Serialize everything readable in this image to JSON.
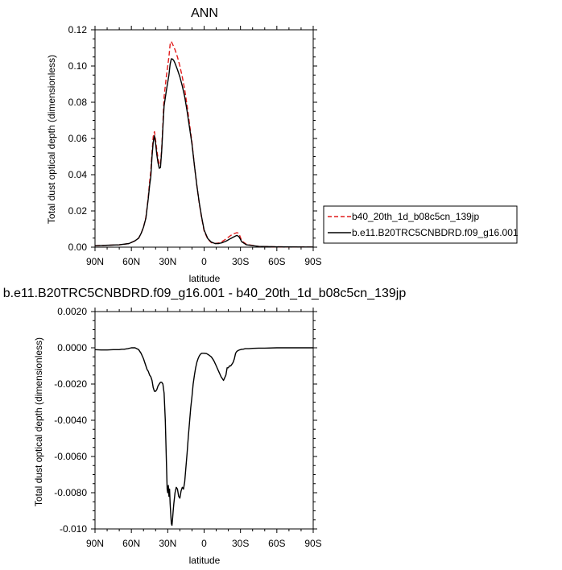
{
  "chart_data": [
    {
      "type": "line",
      "title": "ANN",
      "xlabel": "latitude",
      "ylabel": "Total dust optical depth (dimensionless)",
      "xlim": [
        90,
        -90
      ],
      "ylim": [
        0,
        0.12
      ],
      "x_ticks": [
        "90N",
        "60N",
        "30N",
        "0",
        "30S",
        "60S",
        "90S"
      ],
      "y_ticks": [
        "0.00",
        "0.02",
        "0.04",
        "0.06",
        "0.08",
        "0.10",
        "0.12"
      ],
      "legend_position": "right",
      "series": [
        {
          "name": "b40_20th_1d_b08c5cn_139jp",
          "color": "#e11b1b",
          "dash": "dashed",
          "x": [
            90,
            70,
            62,
            57,
            54,
            52,
            50,
            48,
            47,
            46,
            45,
            44,
            43,
            42,
            41,
            40,
            39,
            38,
            37,
            36,
            35,
            34,
            33,
            31,
            29,
            28,
            27,
            26,
            25,
            24,
            22,
            20,
            18,
            16,
            14,
            12,
            10,
            8,
            6,
            4,
            2,
            0,
            -3,
            -6,
            -9,
            -12,
            -15,
            -18,
            -22,
            -25,
            -27,
            -28,
            -29,
            -31,
            -35,
            -45,
            -60,
            -90
          ],
          "y": [
            0.0008,
            0.0013,
            0.002,
            0.0035,
            0.005,
            0.0075,
            0.011,
            0.0165,
            0.022,
            0.028,
            0.036,
            0.042,
            0.052,
            0.061,
            0.0638,
            0.059,
            0.0535,
            0.049,
            0.0455,
            0.046,
            0.054,
            0.068,
            0.083,
            0.095,
            0.105,
            0.112,
            0.1135,
            0.112,
            0.1105,
            0.109,
            0.105,
            0.1,
            0.094,
            0.087,
            0.078,
            0.068,
            0.058,
            0.045,
            0.034,
            0.024,
            0.016,
            0.009,
            0.0045,
            0.0025,
            0.002,
            0.0023,
            0.0032,
            0.0045,
            0.0065,
            0.0075,
            0.008,
            0.0078,
            0.007,
            0.0035,
            0.0015,
            0.0004,
            0.0002,
            0.0001
          ]
        },
        {
          "name": "b.e11.B20TRC5CNBDRD.f09_g16.001",
          "color": "#000000",
          "dash": "solid",
          "x": [
            90,
            70,
            62,
            57,
            54,
            52,
            50,
            48,
            47,
            46,
            45,
            44,
            43,
            42,
            41,
            40,
            39,
            38,
            37,
            36,
            35,
            34,
            33,
            31,
            29,
            28,
            27,
            26,
            25,
            24,
            22,
            20,
            18,
            16,
            14,
            12,
            10,
            8,
            6,
            4,
            2,
            0,
            -3,
            -6,
            -9,
            -12,
            -15,
            -18,
            -22,
            -25,
            -27,
            -28,
            -29,
            -31,
            -35,
            -45,
            -60,
            -90
          ],
          "y": [
            0.0008,
            0.0013,
            0.002,
            0.0035,
            0.005,
            0.0075,
            0.011,
            0.016,
            0.0215,
            0.027,
            0.034,
            0.039,
            0.05,
            0.058,
            0.0615,
            0.057,
            0.051,
            0.0465,
            0.0435,
            0.044,
            0.053,
            0.066,
            0.078,
            0.087,
            0.095,
            0.101,
            0.104,
            0.1038,
            0.103,
            0.1015,
            0.098,
            0.094,
            0.089,
            0.083,
            0.075,
            0.066,
            0.057,
            0.045,
            0.034,
            0.0245,
            0.0165,
            0.0095,
            0.0048,
            0.0028,
            0.002,
            0.002,
            0.0025,
            0.0033,
            0.0048,
            0.0058,
            0.0065,
            0.0062,
            0.0055,
            0.003,
            0.0013,
            0.0004,
            0.0002,
            0.0001
          ]
        }
      ]
    },
    {
      "type": "line",
      "title": "b.e11.B20TRC5CNBDRD.f09_g16.001 - b40_20th_1d_b08c5cn_139jp",
      "xlabel": "latitude",
      "ylabel": "Total dust optical depth (dimensionless)",
      "xlim": [
        90,
        -90
      ],
      "ylim": [
        -0.01,
        0.002
      ],
      "x_ticks": [
        "90N",
        "60N",
        "30N",
        "0",
        "30S",
        "60S",
        "90S"
      ],
      "y_ticks": [
        "-0.010",
        "-0.0080",
        "-0.0060",
        "-0.0040",
        "-0.0020",
        "0.0000",
        "0.0020"
      ],
      "series": [
        {
          "color": "#000000",
          "dash": "solid",
          "x": [
            90,
            85,
            80,
            75,
            70,
            68,
            66,
            63,
            60,
            57,
            54,
            52,
            50,
            48,
            47,
            46,
            45,
            44,
            43,
            42,
            41,
            40,
            39,
            38,
            37,
            36,
            35,
            34,
            33,
            32,
            31,
            30.5,
            30,
            29.5,
            29,
            28.5,
            28,
            27.5,
            27,
            26.5,
            26,
            25.5,
            25,
            24,
            23,
            22,
            21,
            20,
            19,
            18,
            17,
            16,
            15,
            14,
            13,
            12,
            11,
            10,
            9,
            8,
            7,
            6,
            5,
            4,
            3,
            2,
            1,
            0,
            -2,
            -4,
            -6,
            -8,
            -10,
            -12,
            -14,
            -16,
            -18,
            -19,
            -20,
            -21,
            -22,
            -23,
            -24,
            -25,
            -26,
            -27,
            -28,
            -29,
            -30,
            -31,
            -32,
            -34,
            -37,
            -40,
            -45,
            -50,
            -60,
            -70,
            -90
          ],
          "y": [
            -0.0001,
            -0.00012,
            -0.00012,
            -0.0001,
            -0.0001,
            -8e-05,
            -8e-05,
            -5e-05,
            0,
            0,
            -0.0001,
            -0.0003,
            -0.0006,
            -0.001,
            -0.0012,
            -0.0013,
            -0.0015,
            -0.0016,
            -0.0018,
            -0.0022,
            -0.0024,
            -0.0024,
            -0.0023,
            -0.0021,
            -0.002,
            -0.0019,
            -0.0019,
            -0.002,
            -0.0025,
            -0.004,
            -0.0065,
            -0.0078,
            -0.008,
            -0.0076,
            -0.0082,
            -0.0078,
            -0.0086,
            -0.0092,
            -0.0097,
            -0.0098,
            -0.0094,
            -0.009,
            -0.0086,
            -0.008,
            -0.0077,
            -0.0078,
            -0.0082,
            -0.0083,
            -0.0079,
            -0.0077,
            -0.0078,
            -0.0074,
            -0.0066,
            -0.0058,
            -0.0049,
            -0.0041,
            -0.0033,
            -0.0027,
            -0.002,
            -0.0015,
            -0.0011,
            -0.0008,
            -0.0006,
            -0.00045,
            -0.00035,
            -0.0003,
            -0.0003,
            -0.0003,
            -0.00032,
            -0.0004,
            -0.0005,
            -0.0007,
            -0.001,
            -0.0013,
            -0.0016,
            -0.0018,
            -0.0015,
            -0.0011,
            -0.0011,
            -0.001,
            -0.001,
            -0.0009,
            -0.0008,
            -0.0006,
            -0.0003,
            -0.0002,
            -0.00015,
            -0.00012,
            -0.0001,
            -8e-05,
            -8e-05,
            -5e-05,
            -5e-05,
            -3e-05,
            -2e-05,
            -2e-05,
            0,
            0,
            0
          ]
        }
      ]
    }
  ]
}
